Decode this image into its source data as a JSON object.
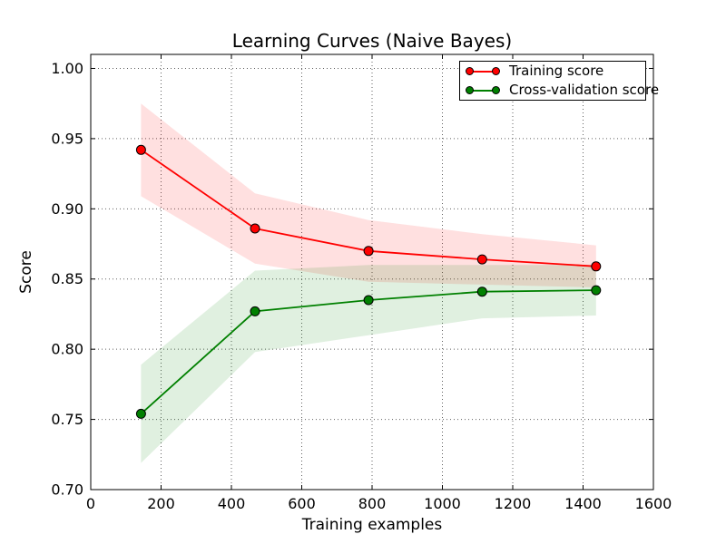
{
  "chart_data": {
    "type": "line",
    "title": "Learning Curves (Naive Bayes)",
    "xlabel": "Training examples",
    "ylabel": "Score",
    "xlim": [
      0,
      1600
    ],
    "ylim": [
      0.7,
      1.01
    ],
    "xticks": [
      0,
      200,
      400,
      600,
      800,
      1000,
      1200,
      1400,
      1600
    ],
    "yticks": [
      0.7,
      0.75,
      0.8,
      0.85,
      0.9,
      0.95,
      1.0
    ],
    "grid": "dotted",
    "grid_color": "#606060",
    "legend_position": "upper right",
    "background": "#ffffff",
    "x": [
      143,
      467,
      790,
      1113,
      1437
    ],
    "series": [
      {
        "name": "Training score",
        "color": "#ff0000",
        "values": [
          0.942,
          0.886,
          0.87,
          0.864,
          0.859
        ],
        "std": [
          0.033,
          0.025,
          0.022,
          0.018,
          0.015
        ],
        "band_opacity": 0.12
      },
      {
        "name": "Cross-validation score",
        "color": "#008000",
        "values": [
          0.754,
          0.827,
          0.835,
          0.841,
          0.842
        ],
        "std": [
          0.035,
          0.029,
          0.025,
          0.019,
          0.018
        ],
        "band_opacity": 0.12
      }
    ]
  }
}
